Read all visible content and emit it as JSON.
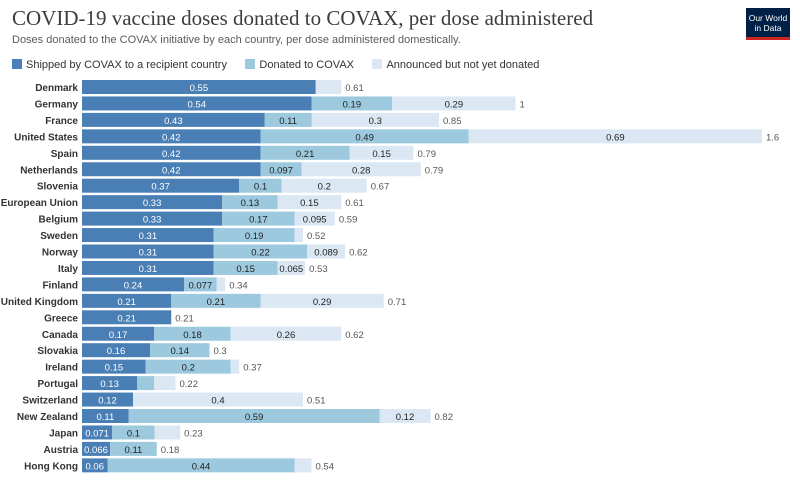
{
  "header": {
    "title": "COVID-19 vaccine doses donated to COVAX, per dose administered",
    "subtitle": "Doses donated to the COVAX initiative by each country, per dose administered domestically.",
    "logo_line1": "Our World",
    "logo_line2": "in Data"
  },
  "chart_data": {
    "type": "bar",
    "orientation": "horizontal",
    "stacked": true,
    "title": "COVID-19 vaccine doses donated to COVAX, per dose administered",
    "subtitle": "Doses donated to the COVAX initiative by each country, per dose administered domestically.",
    "xlim": [
      0,
      1.6
    ],
    "grid": false,
    "legend_position": "top-left",
    "categories": [
      "Denmark",
      "Germany",
      "France",
      "United States",
      "Spain",
      "Netherlands",
      "Slovenia",
      "European Union",
      "Belgium",
      "Sweden",
      "Norway",
      "Italy",
      "Finland",
      "United Kingdom",
      "Greece",
      "Canada",
      "Slovakia",
      "Ireland",
      "Portugal",
      "Switzerland",
      "New Zealand",
      "Japan",
      "Austria",
      "Hong Kong"
    ],
    "series": [
      {
        "name": "Shipped by COVAX to a recipient country",
        "color": "#4a7fb5",
        "values": [
          0.55,
          0.54,
          0.43,
          0.42,
          0.42,
          0.42,
          0.37,
          0.33,
          0.33,
          0.31,
          0.31,
          0.31,
          0.24,
          0.21,
          0.21,
          0.17,
          0.16,
          0.15,
          0.13,
          0.12,
          0.11,
          0.071,
          0.066,
          0.06
        ],
        "labels": [
          "0.55",
          "0.54",
          "0.43",
          "0.42",
          "0.42",
          "0.42",
          "0.37",
          "0.33",
          "0.33",
          "0.31",
          "0.31",
          "0.31",
          "0.24",
          "0.21",
          "0.21",
          "0.17",
          "0.16",
          "0.15",
          "0.13",
          "0.12",
          "0.11",
          "0.071",
          "0.066",
          "0.06"
        ]
      },
      {
        "name": "Donated to COVAX",
        "color": "#9dc9de",
        "values": [
          0,
          0.19,
          0.11,
          0.49,
          0.21,
          0.097,
          0.1,
          0.13,
          0.17,
          0.19,
          0.22,
          0.15,
          0.077,
          0.21,
          0,
          0.18,
          0.14,
          0.2,
          0.04,
          0,
          0.59,
          0.1,
          0.11,
          0.44
        ],
        "labels": [
          "",
          "0.19",
          "0.11",
          "0.49",
          "0.21",
          "0.097",
          "0.1",
          "0.13",
          "0.17",
          "0.19",
          "0.22",
          "0.15",
          "0.077",
          "0.21",
          "",
          "0.18",
          "0.14",
          "0.2",
          "",
          "",
          "0.59",
          "0.1",
          "0.11",
          "0.44"
        ]
      },
      {
        "name": "Announced but not yet donated",
        "color": "#dbe8f3",
        "values": [
          0.06,
          0.29,
          0.3,
          0.69,
          0.15,
          0.28,
          0.2,
          0.15,
          0.095,
          0.02,
          0.089,
          0.065,
          0.02,
          0.29,
          0,
          0.26,
          0,
          0.02,
          0.05,
          0.4,
          0.12,
          0.06,
          0,
          0.04
        ],
        "labels": [
          "",
          "0.29",
          "0.3",
          "0.69",
          "0.15",
          "0.28",
          "0.2",
          "0.15",
          "0.095",
          "",
          "0.089",
          "0.065",
          "",
          "0.29",
          "",
          "0.26",
          "",
          "",
          "",
          "0.4",
          "0.12",
          "",
          "",
          ""
        ]
      }
    ],
    "totals": [
      "0.61",
      "1",
      "0.85",
      "1.6",
      "0.79",
      "0.79",
      "0.67",
      "0.61",
      "0.59",
      "0.52",
      "0.62",
      "0.53",
      "0.34",
      "0.71",
      "0.21",
      "0.62",
      "0.3",
      "0.37",
      "0.22",
      "0.51",
      "0.82",
      "0.23",
      "0.18",
      "0.54"
    ]
  }
}
